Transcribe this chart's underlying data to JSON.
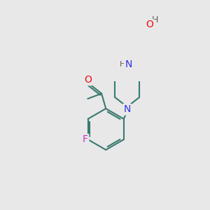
{
  "bg_color": "#e8e8e8",
  "bond_color": "#3a7a6e",
  "bond_width": 1.5,
  "atom_colors": {
    "N": "#3030ee",
    "O": "#ee1010",
    "F": "#cc30cc",
    "H": "#606060"
  },
  "figsize": [
    3.0,
    3.0
  ],
  "dpi": 100,
  "font_size": 9
}
